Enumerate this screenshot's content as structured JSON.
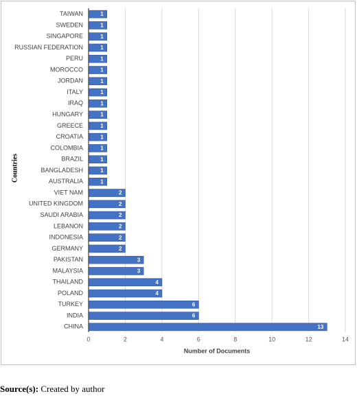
{
  "chart_data": {
    "type": "barh",
    "categories": [
      "TAIWAN",
      "SWEDEN",
      "SINGAPORE",
      "RUSSIAN FEDERATION",
      "PERU",
      "MOROCCO",
      "JORDAN",
      "ITALY",
      "IRAQ",
      "HUNGARY",
      "GREECE",
      "CROATIA",
      "COLOMBIA",
      "BRAZIL",
      "BANGLADESH",
      "AUSTRALIA",
      "VIET NAM",
      "UNITED KINGDOM",
      "SAUDI ARABIA",
      "LEBANON",
      "INDONESIA",
      "GERMANY",
      "PAKISTAN",
      "MALAYSIA",
      "THAILAND",
      "POLAND",
      "TURKEY",
      "INDIA",
      "CHINA"
    ],
    "values": [
      1,
      1,
      1,
      1,
      1,
      1,
      1,
      1,
      1,
      1,
      1,
      1,
      1,
      1,
      1,
      1,
      2,
      2,
      2,
      2,
      2,
      2,
      3,
      3,
      4,
      4,
      6,
      6,
      13
    ],
    "color": "#4472c4",
    "xlim": [
      0,
      14
    ],
    "xticks": [
      0,
      2,
      4,
      6,
      8,
      10,
      12,
      14
    ],
    "grid": true,
    "xlabel": "Number of Documents",
    "ylabel": "Countries"
  },
  "caption": {
    "label": "Source(s):",
    "text": "Created by author"
  }
}
